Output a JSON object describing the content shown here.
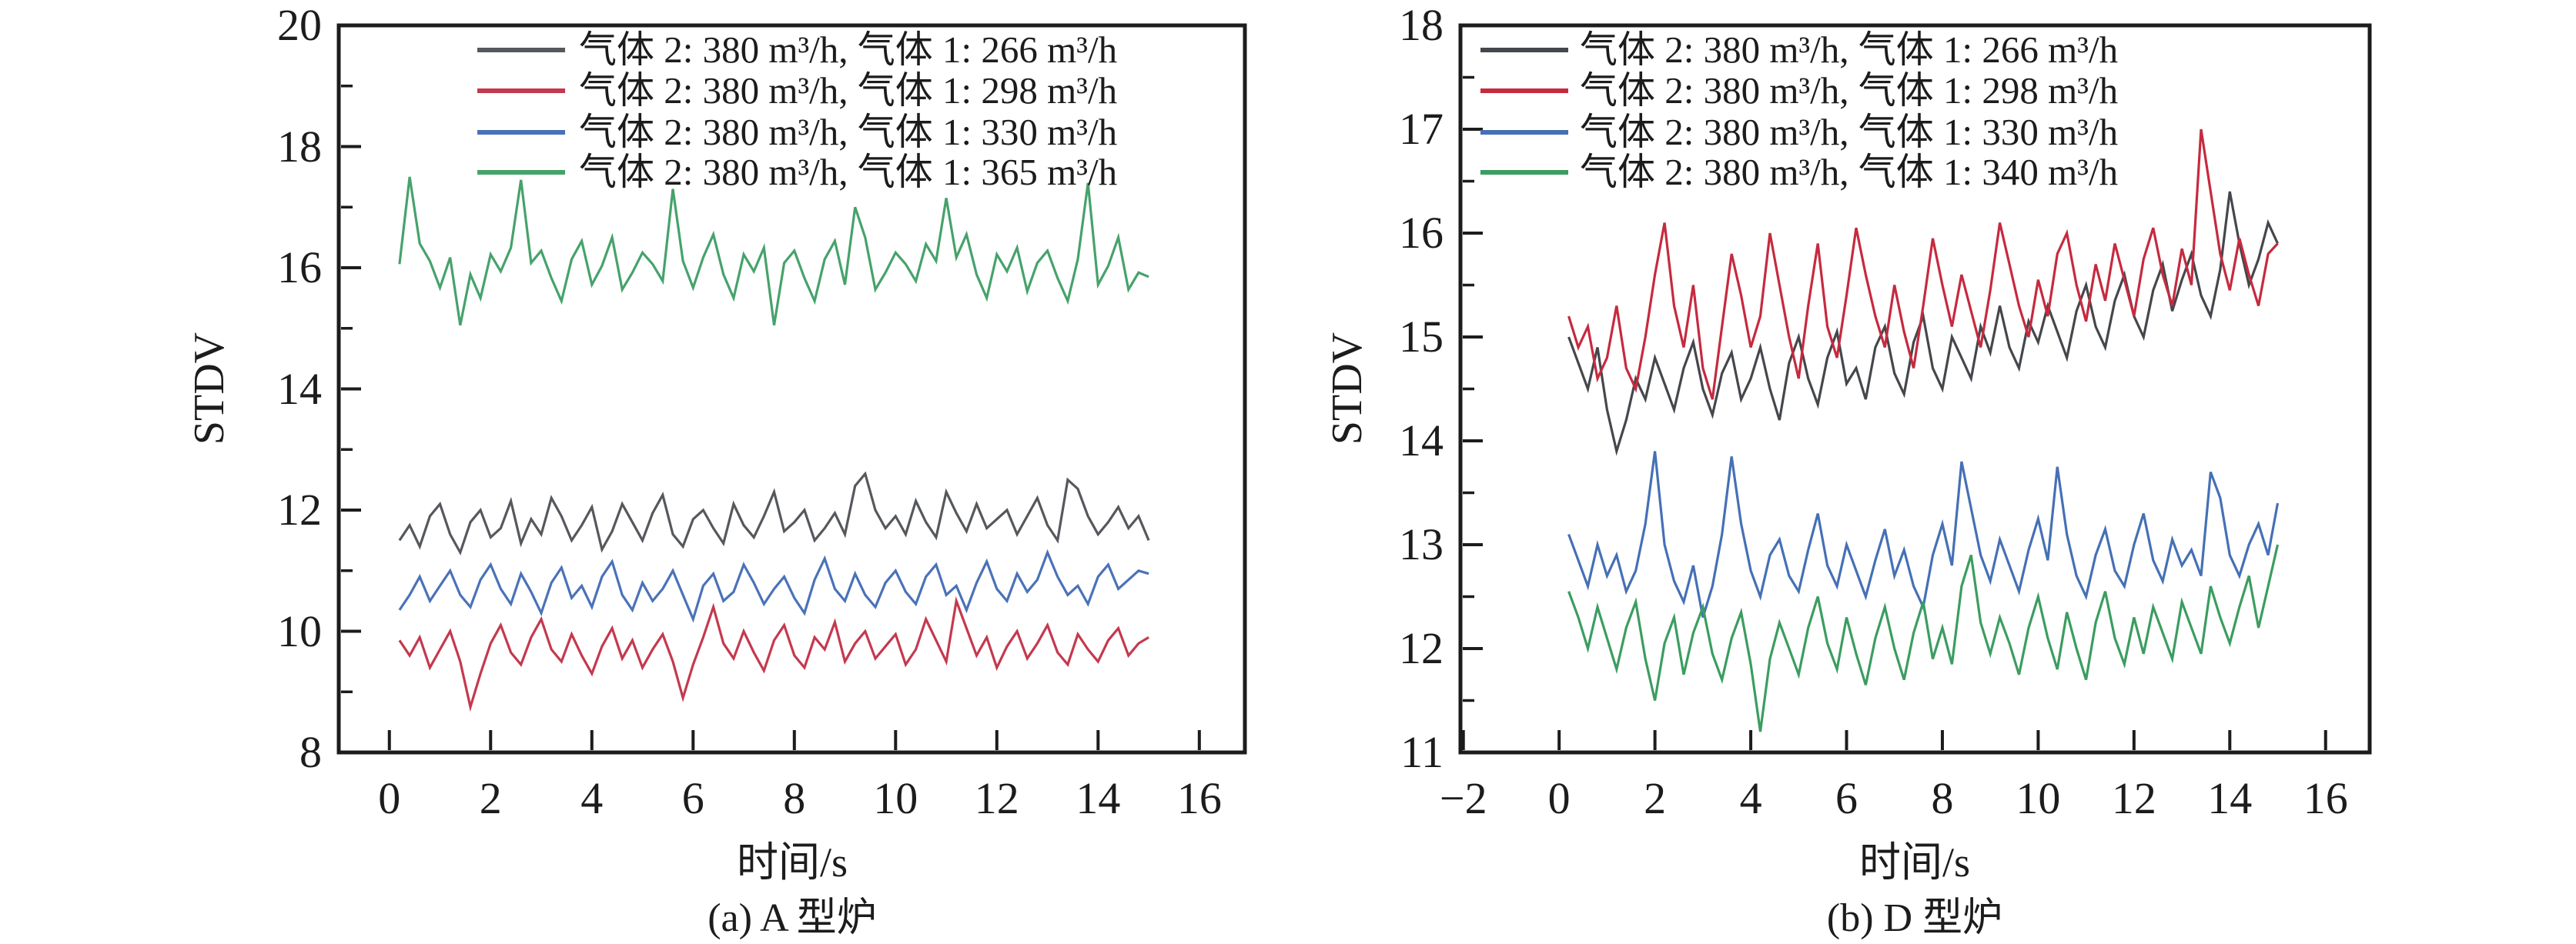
{
  "figure": {
    "background": "#ffffff",
    "text_color": "#1c1c1c",
    "axis_color": "#1c1c1c"
  },
  "chart_data": [
    {
      "type": "line",
      "title": "(a) A 型炉",
      "xlabel": "时间/s",
      "ylabel": "STDV",
      "xlim": [
        -1.0,
        16.9
      ],
      "ylim": [
        8,
        20
      ],
      "x_ticks": [
        0,
        2,
        4,
        6,
        8,
        10,
        12,
        14,
        16
      ],
      "y_ticks": [
        8,
        10,
        12,
        14,
        16,
        18,
        20
      ],
      "y_minor_ticks": [
        9,
        11,
        13,
        15,
        17,
        19
      ],
      "grid": false,
      "legend_position": "top-inside",
      "x_start": 0.2,
      "x_step": 0.2,
      "series": [
        {
          "name": "气体 2: 380 m³/h, 气体 1: 266 m³/h",
          "color": "#55585c",
          "values": [
            11.5,
            11.75,
            11.4,
            11.9,
            12.1,
            11.6,
            11.3,
            11.8,
            12.0,
            11.55,
            11.7,
            12.15,
            11.45,
            11.85,
            11.6,
            12.2,
            11.9,
            11.5,
            11.75,
            12.05,
            11.35,
            11.65,
            12.1,
            11.8,
            11.5,
            11.95,
            12.25,
            11.6,
            11.4,
            11.85,
            12.0,
            11.7,
            11.45,
            12.1,
            11.75,
            11.55,
            11.9,
            12.3,
            11.65,
            11.8,
            12.0,
            11.5,
            11.7,
            11.95,
            11.6,
            12.4,
            12.6,
            12.0,
            11.7,
            11.9,
            11.6,
            12.15,
            11.8,
            11.55,
            12.3,
            11.95,
            11.65,
            12.1,
            11.7,
            11.85,
            12.0,
            11.6,
            11.9,
            12.2,
            11.75,
            11.5,
            12.5,
            12.35,
            11.9,
            11.6,
            11.8,
            12.05,
            11.7,
            11.9,
            11.5
          ]
        },
        {
          "name": "气体 2: 380 m³/h, 气体 1: 298 m³/h",
          "color": "#c4394e",
          "values": [
            9.85,
            9.6,
            9.9,
            9.4,
            9.7,
            10.0,
            9.5,
            8.75,
            9.3,
            9.8,
            10.1,
            9.65,
            9.45,
            9.9,
            10.2,
            9.7,
            9.5,
            9.95,
            9.6,
            9.3,
            9.75,
            10.05,
            9.55,
            9.85,
            9.4,
            9.7,
            9.95,
            9.5,
            8.9,
            9.45,
            9.9,
            10.4,
            9.8,
            9.55,
            10.0,
            9.65,
            9.35,
            9.85,
            10.1,
            9.6,
            9.4,
            9.9,
            9.7,
            10.15,
            9.5,
            9.8,
            10.0,
            9.55,
            9.75,
            9.95,
            9.45,
            9.7,
            10.2,
            9.85,
            9.5,
            10.5,
            10.05,
            9.6,
            9.9,
            9.4,
            9.75,
            10.0,
            9.55,
            9.8,
            10.1,
            9.65,
            9.45,
            9.95,
            9.7,
            9.5,
            9.85,
            10.05,
            9.6,
            9.8,
            9.9
          ]
        },
        {
          "name": "气体 2: 380 m³/h, 气体 1: 330 m³/h",
          "color": "#4a72b8",
          "values": [
            10.35,
            10.6,
            10.9,
            10.5,
            10.75,
            11.0,
            10.6,
            10.4,
            10.85,
            11.1,
            10.7,
            10.45,
            10.95,
            10.65,
            10.3,
            10.8,
            11.05,
            10.55,
            10.75,
            10.4,
            10.9,
            11.15,
            10.6,
            10.35,
            10.8,
            10.5,
            10.7,
            11.0,
            10.6,
            10.2,
            10.75,
            10.95,
            10.5,
            10.65,
            11.1,
            10.8,
            10.45,
            10.7,
            10.9,
            10.55,
            10.3,
            10.85,
            11.2,
            10.7,
            10.5,
            10.95,
            10.6,
            10.4,
            10.8,
            11.0,
            10.65,
            10.45,
            10.9,
            11.1,
            10.6,
            10.75,
            10.35,
            10.8,
            11.15,
            10.7,
            10.5,
            10.95,
            10.65,
            10.85,
            11.3,
            10.9,
            10.6,
            10.75,
            10.45,
            10.9,
            11.1,
            10.7,
            10.85,
            11.0,
            10.95
          ]
        },
        {
          "name": "气体 2: 380 m³/h, 气体 1: 365 m³/h",
          "color": "#46a26b",
          "values": [
            16.06,
            17.5,
            16.4,
            16.11,
            15.67,
            16.17,
            15.05,
            15.89,
            15.5,
            16.22,
            15.94,
            16.33,
            17.45,
            16.08,
            16.28,
            15.83,
            15.45,
            16.14,
            16.44,
            15.72,
            16.03,
            16.5,
            15.64,
            15.92,
            16.25,
            16.06,
            15.78,
            17.3,
            16.11,
            15.67,
            16.17,
            16.55,
            15.89,
            15.5,
            16.22,
            15.94,
            16.33,
            15.05,
            16.08,
            16.28,
            15.83,
            15.45,
            16.14,
            16.44,
            15.72,
            17.0,
            16.5,
            15.64,
            15.92,
            16.25,
            16.06,
            15.78,
            16.39,
            16.11,
            17.15,
            16.17,
            16.55,
            15.89,
            15.5,
            16.22,
            15.94,
            16.33,
            15.61,
            16.08,
            16.28,
            15.83,
            15.45,
            16.14,
            17.4,
            15.72,
            16.03,
            16.5,
            15.64,
            15.92,
            15.85
          ]
        }
      ]
    },
    {
      "type": "line",
      "title": "(b) D 型炉",
      "xlabel": "时间/s",
      "ylabel": "STDV",
      "xlim": [
        -2.06,
        16.92
      ],
      "ylim": [
        11,
        18
      ],
      "x_ticks": [
        -2,
        0,
        2,
        4,
        6,
        8,
        10,
        12,
        14,
        16
      ],
      "y_ticks": [
        11,
        12,
        13,
        14,
        15,
        16,
        17,
        18
      ],
      "y_minor_ticks": [
        11.5,
        12.5,
        13.5,
        14.5,
        15.5,
        16.5,
        17.5
      ],
      "grid": false,
      "legend_position": "top-inside",
      "x_start": 0.2,
      "x_step": 0.2,
      "series": [
        {
          "name": "气体 2: 380 m³/h, 气体 1: 266 m³/h",
          "color": "#44474b",
          "values": [
            15.0,
            14.75,
            14.5,
            14.9,
            14.3,
            13.9,
            14.2,
            14.6,
            14.4,
            14.8,
            14.55,
            14.3,
            14.7,
            14.95,
            14.5,
            14.25,
            14.65,
            14.85,
            14.4,
            14.6,
            14.9,
            14.5,
            14.2,
            14.75,
            15.0,
            14.6,
            14.35,
            14.8,
            15.05,
            14.55,
            14.7,
            14.4,
            14.9,
            15.1,
            14.65,
            14.45,
            14.95,
            15.2,
            14.7,
            14.5,
            15.0,
            14.8,
            14.6,
            15.1,
            14.85,
            15.3,
            14.9,
            14.7,
            15.15,
            14.95,
            15.3,
            15.05,
            14.8,
            15.25,
            15.5,
            15.1,
            14.9,
            15.35,
            15.6,
            15.2,
            15.0,
            15.45,
            15.7,
            15.25,
            15.55,
            15.8,
            15.4,
            15.2,
            15.65,
            16.4,
            15.9,
            15.5,
            15.75,
            16.1,
            15.9
          ]
        },
        {
          "name": "气体 2: 380 m³/h, 气体 1: 298 m³/h",
          "color": "#c62a3f",
          "values": [
            15.2,
            14.9,
            15.1,
            14.6,
            14.8,
            15.3,
            14.7,
            14.5,
            15.0,
            15.6,
            16.1,
            15.3,
            14.9,
            15.5,
            14.7,
            14.4,
            15.1,
            15.8,
            15.4,
            14.9,
            15.2,
            16.0,
            15.5,
            15.0,
            14.6,
            15.3,
            15.9,
            15.1,
            14.8,
            15.4,
            16.05,
            15.6,
            15.2,
            14.9,
            15.5,
            15.05,
            14.7,
            15.3,
            15.95,
            15.5,
            15.1,
            15.6,
            15.25,
            14.9,
            15.45,
            16.1,
            15.7,
            15.3,
            15.0,
            15.55,
            15.2,
            15.8,
            16.0,
            15.5,
            15.15,
            15.7,
            15.35,
            15.9,
            15.55,
            15.2,
            15.75,
            16.05,
            15.6,
            15.3,
            15.85,
            15.5,
            17.0,
            16.4,
            15.8,
            15.45,
            15.95,
            15.6,
            15.3,
            15.8,
            15.9
          ]
        },
        {
          "name": "气体 2: 380 m³/h, 气体 1: 330 m³/h",
          "color": "#4570b5",
          "values": [
            13.1,
            12.85,
            12.6,
            13.0,
            12.7,
            12.9,
            12.55,
            12.75,
            13.2,
            13.9,
            13.0,
            12.65,
            12.45,
            12.8,
            12.3,
            12.6,
            13.1,
            13.85,
            13.2,
            12.75,
            12.5,
            12.9,
            13.05,
            12.7,
            12.55,
            12.95,
            13.3,
            12.8,
            12.6,
            13.0,
            12.75,
            12.5,
            12.85,
            13.15,
            12.7,
            12.95,
            12.6,
            12.4,
            12.9,
            13.2,
            12.8,
            13.8,
            13.35,
            12.9,
            12.65,
            13.05,
            12.8,
            12.55,
            12.95,
            13.25,
            12.85,
            13.75,
            13.1,
            12.7,
            12.5,
            12.9,
            13.15,
            12.75,
            12.6,
            13.0,
            13.3,
            12.85,
            12.65,
            13.05,
            12.8,
            12.95,
            12.7,
            13.7,
            13.45,
            12.9,
            12.7,
            13.0,
            13.2,
            12.9,
            13.4
          ]
        },
        {
          "name": "气体 2: 380 m³/h, 气体 1: 340 m³/h",
          "color": "#3b9d60",
          "values": [
            12.55,
            12.3,
            12.0,
            12.4,
            12.1,
            11.8,
            12.2,
            12.45,
            11.9,
            11.5,
            12.05,
            12.3,
            11.75,
            12.15,
            12.4,
            11.95,
            11.7,
            12.1,
            12.35,
            11.85,
            11.2,
            11.9,
            12.25,
            12.0,
            11.75,
            12.2,
            12.5,
            12.05,
            11.8,
            12.3,
            11.95,
            11.65,
            12.1,
            12.4,
            12.0,
            11.7,
            12.15,
            12.45,
            11.9,
            12.2,
            11.85,
            12.6,
            12.9,
            12.25,
            11.95,
            12.3,
            12.05,
            11.75,
            12.2,
            12.5,
            12.1,
            11.8,
            12.35,
            12.0,
            11.7,
            12.25,
            12.55,
            12.1,
            11.85,
            12.3,
            11.95,
            12.4,
            12.15,
            11.9,
            12.45,
            12.2,
            11.95,
            12.6,
            12.3,
            12.05,
            12.4,
            12.7,
            12.2,
            12.6,
            13.0
          ]
        }
      ]
    }
  ]
}
